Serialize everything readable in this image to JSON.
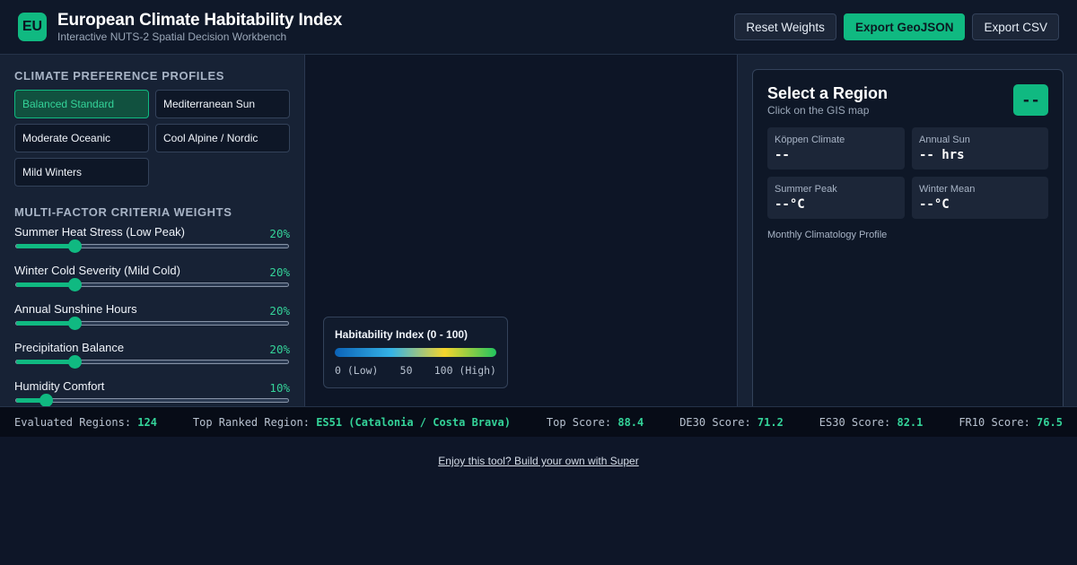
{
  "header": {
    "logo": "EU",
    "title": "European Climate Habitability Index",
    "subtitle": "Interactive NUTS-2 Spatial Decision Workbench",
    "buttons": {
      "reset": "Reset Weights",
      "export_geojson": "Export GeoJSON",
      "export_csv": "Export CSV"
    }
  },
  "profiles": {
    "title": "Climate Preference Profiles",
    "items": [
      {
        "label": "Balanced Standard",
        "active": true
      },
      {
        "label": "Mediterranean Sun",
        "active": false
      },
      {
        "label": "Moderate Oceanic",
        "active": false
      },
      {
        "label": "Cool Alpine / Nordic",
        "active": false
      },
      {
        "label": "Mild Winters",
        "active": false
      }
    ]
  },
  "weights": {
    "title": "Multi-Factor Criteria Weights",
    "items": [
      {
        "label": "Summer Heat Stress (Low Peak)",
        "value_text": "20%",
        "value": 0.2
      },
      {
        "label": "Winter Cold Severity (Mild Cold)",
        "value_text": "20%",
        "value": 0.2
      },
      {
        "label": "Annual Sunshine Hours",
        "value_text": "20%",
        "value": 0.2
      },
      {
        "label": "Precipitation Balance",
        "value_text": "20%",
        "value": 0.2
      },
      {
        "label": "Humidity Comfort",
        "value_text": "10%",
        "value": 0.1
      }
    ]
  },
  "legend": {
    "title": "Habitability Index (0 - 100)",
    "low": "0 (Low)",
    "mid": "50",
    "high": "100 (High)"
  },
  "region": {
    "title": "Select a Region",
    "subtitle": "Click on the GIS map",
    "score": "--",
    "stats": [
      {
        "label": "Köppen Climate",
        "value": "--"
      },
      {
        "label": "Annual Sun",
        "value": "-- hrs"
      },
      {
        "label": "Summer Peak",
        "value": "--°C"
      },
      {
        "label": "Winter Mean",
        "value": "--°C"
      }
    ],
    "monthly_label": "Monthly Climatology Profile"
  },
  "status": {
    "evaluated_label": "Evaluated Regions:",
    "evaluated_value": "124",
    "top_region_label": "Top Ranked Region:",
    "top_region_value": "ES51 (Catalonia / Costa Brava)",
    "top_score_label": "Top Score:",
    "top_score_value": "88.4",
    "de30_label": "DE30 Score:",
    "de30_value": "71.2",
    "es30_label": "ES30 Score:",
    "es30_value": "82.1",
    "fr10_label": "FR10 Score:",
    "fr10_value": "76.5"
  },
  "footer": {
    "link": "Enjoy this tool? Build your own with Super"
  }
}
